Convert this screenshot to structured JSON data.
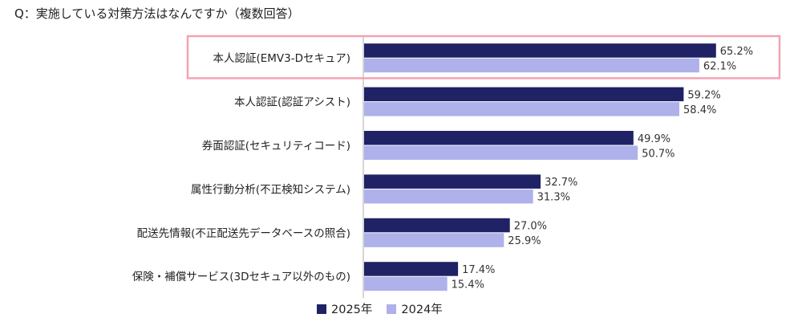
{
  "question": "Q：実施している対策方法はなんですか（複数回答）",
  "colors": {
    "series_2025": "#1f2264",
    "series_2024": "#aeb1ea",
    "highlight_border": "#f2a3b4",
    "axis": "#c8c8c8"
  },
  "chart_data": {
    "type": "bar",
    "orientation": "horizontal",
    "categories": [
      "本人認証(EMV3-Dセキュア)",
      "本人認証(認証アシスト)",
      "券面認証(セキュリティコード)",
      "属性行動分析(不正検知システム)",
      "配送先情報(不正配送先データベースの照合)",
      "保険・補償サービス(3Dセキュア以外のもの)"
    ],
    "series": [
      {
        "name": "2025年",
        "values": [
          65.2,
          59.2,
          49.9,
          32.7,
          27.0,
          17.4
        ],
        "labels": [
          "65.2%",
          "59.2%",
          "49.9%",
          "32.7%",
          "27.0%",
          "17.4%"
        ]
      },
      {
        "name": "2024年",
        "values": [
          62.1,
          58.4,
          50.7,
          31.3,
          25.9,
          15.4
        ],
        "labels": [
          "62.1%",
          "58.4%",
          "50.7%",
          "31.3%",
          "25.9%",
          "15.4%"
        ]
      }
    ],
    "xlim": [
      0,
      100
    ],
    "highlighted_category_index": 0,
    "legend_position": "bottom-center",
    "grid": false
  }
}
